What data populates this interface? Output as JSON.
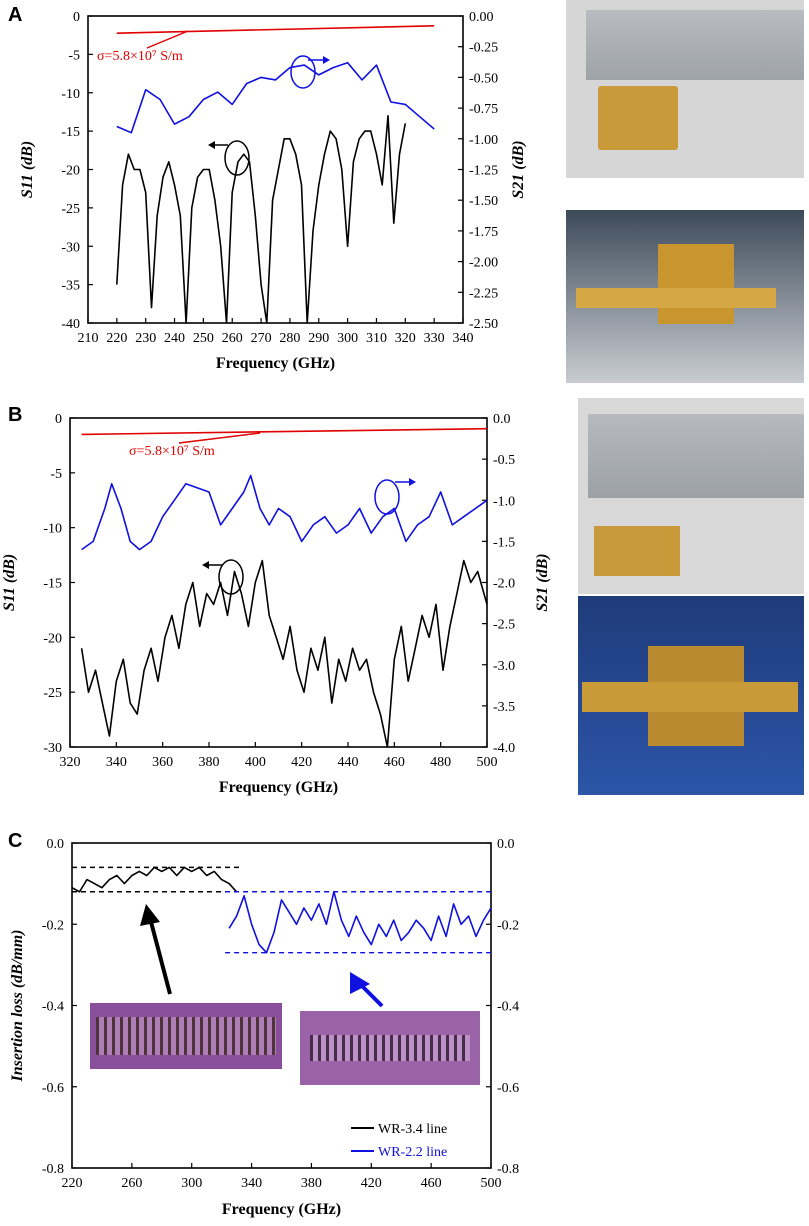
{
  "panels": {
    "a": "A",
    "b": "B",
    "c": "C"
  },
  "chart_data": [
    {
      "panel": "A",
      "type": "line",
      "xlabel": "Frequency (GHz)",
      "ylabel_left": "S11 (dB)",
      "ylabel_right": "S21 (dB)",
      "xlim": [
        210,
        340
      ],
      "ylim_left": [
        -40,
        0
      ],
      "ylim_right": [
        -2.5,
        0
      ],
      "xticks": [
        210,
        220,
        230,
        240,
        250,
        260,
        270,
        280,
        290,
        300,
        310,
        320,
        330,
        340
      ],
      "yticks_left": [
        0,
        -5,
        -10,
        -15,
        -20,
        -25,
        -30,
        -35,
        -40
      ],
      "yticks_right": [
        "0.00",
        "-0.25",
        "-0.50",
        "-0.75",
        "-1.00",
        "-1.25",
        "-1.50",
        "-1.75",
        "-2.00",
        "-2.25",
        "-2.50"
      ],
      "annotation": "σ=5.8×10⁷ S/m",
      "series": [
        {
          "color": "#e00000",
          "axis": "right",
          "x": [
            220,
            330
          ],
          "y": [
            -0.14,
            -0.08
          ]
        },
        {
          "color": "#1010e0",
          "axis": "right",
          "x": [
            220,
            225,
            230,
            235,
            240,
            245,
            250,
            255,
            260,
            265,
            270,
            275,
            280,
            285,
            290,
            295,
            300,
            305,
            310,
            315,
            320,
            325,
            330
          ],
          "y": [
            -0.9,
            -0.95,
            -0.6,
            -0.68,
            -0.88,
            -0.82,
            -0.68,
            -0.62,
            -0.72,
            -0.55,
            -0.5,
            -0.52,
            -0.42,
            -0.4,
            -0.48,
            -0.42,
            -0.38,
            -0.52,
            -0.4,
            -0.7,
            -0.72,
            -0.82,
            -0.92
          ]
        },
        {
          "color": "#000000",
          "axis": "left",
          "x": [
            220,
            222,
            224,
            226,
            228,
            230,
            232,
            234,
            236,
            238,
            240,
            242,
            244,
            246,
            248,
            250,
            252,
            254,
            256,
            258,
            260,
            262,
            264,
            266,
            268,
            270,
            272,
            274,
            276,
            278,
            280,
            282,
            284,
            286,
            288,
            290,
            292,
            294,
            296,
            298,
            300,
            302,
            304,
            306,
            308,
            310,
            312,
            314,
            316,
            318,
            320
          ],
          "y": [
            -35,
            -22,
            -18,
            -20,
            -20,
            -23,
            -38,
            -26,
            -21,
            -19,
            -22,
            -26,
            -40,
            -25,
            -21,
            -20,
            -20,
            -24,
            -30,
            -40,
            -23,
            -19,
            -18,
            -19,
            -26,
            -35,
            -40,
            -24,
            -20,
            -16,
            -16,
            -18,
            -22,
            -40,
            -28,
            -22,
            -18,
            -15,
            -16,
            -20,
            -30,
            -19,
            -16,
            -15,
            -15,
            -18,
            -22,
            -13,
            -27,
            -18,
            -14
          ]
        }
      ]
    },
    {
      "panel": "B",
      "type": "line",
      "xlabel": "Frequency (GHz)",
      "ylabel_left": "S11 (dB)",
      "ylabel_right": "S21 (dB)",
      "xlim": [
        320,
        500
      ],
      "ylim_left": [
        -30,
        0
      ],
      "ylim_right": [
        -4,
        0
      ],
      "xticks": [
        320,
        340,
        360,
        380,
        400,
        420,
        440,
        460,
        480,
        500
      ],
      "yticks_left": [
        0,
        -5,
        -10,
        -15,
        -20,
        -25,
        -30
      ],
      "yticks_right": [
        "0.0",
        "-0.5",
        "-1.0",
        "-1.5",
        "-2.0",
        "-2.5",
        "-3.0",
        "-3.5",
        "-4.0"
      ],
      "annotation": "σ=5.8×10⁷ S/m",
      "series": [
        {
          "color": "#e00000",
          "axis": "right",
          "x": [
            325,
            500
          ],
          "y": [
            -0.2,
            -0.13
          ]
        },
        {
          "color": "#1010e0",
          "axis": "right",
          "x": [
            325,
            330,
            335,
            338,
            342,
            346,
            350,
            355,
            360,
            365,
            370,
            375,
            380,
            385,
            390,
            395,
            398,
            402,
            406,
            410,
            415,
            420,
            425,
            430,
            435,
            440,
            445,
            450,
            455,
            460,
            465,
            470,
            475,
            480,
            485,
            490,
            495,
            500
          ],
          "y": [
            -1.6,
            -1.5,
            -1.1,
            -0.8,
            -1.1,
            -1.5,
            -1.6,
            -1.5,
            -1.2,
            -1.0,
            -0.8,
            -0.85,
            -0.9,
            -1.3,
            -1.1,
            -0.9,
            -0.7,
            -1.1,
            -1.3,
            -1.1,
            -1.2,
            -1.5,
            -1.3,
            -1.2,
            -1.4,
            -1.3,
            -1.1,
            -1.4,
            -1.2,
            -1.1,
            -1.5,
            -1.3,
            -1.2,
            -0.9,
            -1.3,
            -1.2,
            -1.1,
            -1.0
          ]
        },
        {
          "color": "#000000",
          "axis": "left",
          "x": [
            325,
            328,
            331,
            334,
            337,
            340,
            343,
            346,
            349,
            352,
            355,
            358,
            361,
            364,
            367,
            370,
            373,
            376,
            379,
            382,
            385,
            388,
            391,
            394,
            397,
            400,
            403,
            406,
            409,
            412,
            415,
            418,
            421,
            424,
            427,
            430,
            433,
            436,
            439,
            442,
            445,
            448,
            451,
            454,
            457,
            460,
            463,
            466,
            469,
            472,
            475,
            478,
            481,
            484,
            487,
            490,
            493,
            496,
            500
          ],
          "y": [
            -21,
            -25,
            -23,
            -26,
            -29,
            -24,
            -22,
            -26,
            -27,
            -23,
            -21,
            -24,
            -20,
            -18,
            -21,
            -17,
            -15,
            -19,
            -16,
            -17,
            -15,
            -18,
            -14,
            -16,
            -19,
            -15,
            -13,
            -18,
            -20,
            -22,
            -19,
            -23,
            -25,
            -21,
            -23,
            -20,
            -26,
            -22,
            -24,
            -21,
            -23,
            -22,
            -25,
            -27,
            -30,
            -22,
            -19,
            -24,
            -21,
            -18,
            -20,
            -17,
            -23,
            -19,
            -16,
            -13,
            -15,
            -14,
            -17
          ]
        }
      ]
    },
    {
      "panel": "C",
      "type": "line",
      "xlabel": "Frequency (GHz)",
      "ylabel_left": "Insertion loss (dB/mm)",
      "xlim": [
        220,
        500
      ],
      "ylim_left": [
        -0.8,
        0
      ],
      "xticks": [
        220,
        260,
        300,
        340,
        380,
        420,
        460,
        500
      ],
      "yticks_left": [
        "0.0",
        "-0.2",
        "-0.4",
        "-0.6",
        "-0.8"
      ],
      "yticks_right": [
        "0.0",
        "-0.2",
        "-0.4",
        "-0.6",
        "-0.8"
      ],
      "legend": [
        "WR-3.4 line",
        "WR-2.2 line"
      ],
      "series": [
        {
          "name": "WR-3.4 line",
          "color": "#000000",
          "x": [
            220,
            225,
            230,
            235,
            240,
            245,
            250,
            255,
            260,
            265,
            270,
            275,
            280,
            285,
            290,
            295,
            300,
            305,
            310,
            315,
            320,
            325,
            330
          ],
          "y": [
            -0.11,
            -0.12,
            -0.09,
            -0.1,
            -0.11,
            -0.09,
            -0.08,
            -0.1,
            -0.08,
            -0.07,
            -0.08,
            -0.06,
            -0.07,
            -0.06,
            -0.08,
            -0.06,
            -0.07,
            -0.06,
            -0.08,
            -0.07,
            -0.09,
            -0.1,
            -0.12
          ]
        },
        {
          "name": "WR-2.2 line",
          "color": "#1010e0",
          "x": [
            325,
            330,
            335,
            340,
            345,
            350,
            355,
            360,
            365,
            370,
            375,
            380,
            385,
            390,
            395,
            400,
            405,
            410,
            415,
            420,
            425,
            430,
            435,
            440,
            445,
            450,
            455,
            460,
            465,
            470,
            475,
            480,
            485,
            490,
            495,
            500
          ],
          "y": [
            -0.21,
            -0.18,
            -0.13,
            -0.2,
            -0.25,
            -0.27,
            -0.22,
            -0.14,
            -0.17,
            -0.2,
            -0.16,
            -0.19,
            -0.15,
            -0.2,
            -0.12,
            -0.19,
            -0.23,
            -0.18,
            -0.22,
            -0.25,
            -0.2,
            -0.23,
            -0.19,
            -0.24,
            -0.22,
            -0.19,
            -0.21,
            -0.24,
            -0.18,
            -0.23,
            -0.15,
            -0.2,
            -0.18,
            -0.23,
            -0.19,
            -0.16
          ]
        }
      ]
    }
  ]
}
